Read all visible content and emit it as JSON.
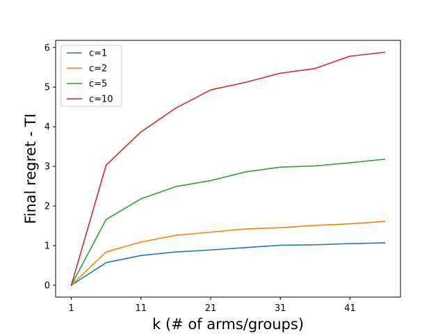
{
  "chart_data": {
    "type": "line",
    "title": "",
    "xlabel": "k (# of arms/groups)",
    "ylabel": "Final regret - TI",
    "x": [
      1,
      6,
      11,
      16,
      21,
      26,
      31,
      36,
      41,
      46
    ],
    "xticks": [
      1,
      11,
      21,
      31,
      41
    ],
    "yticks": [
      0,
      1,
      2,
      3,
      4,
      5,
      6
    ],
    "xlim": [
      -1.25,
      48.25
    ],
    "ylim": [
      -0.3,
      6.18
    ],
    "grid": false,
    "legend_position": "top-left",
    "series": [
      {
        "name": "c=1",
        "color": "#1f77b4",
        "values": [
          0.0,
          0.57,
          0.75,
          0.84,
          0.89,
          0.95,
          1.01,
          1.02,
          1.05,
          1.07
        ]
      },
      {
        "name": "c=2",
        "color": "#ff7f0e",
        "values": [
          0.0,
          0.84,
          1.09,
          1.26,
          1.34,
          1.42,
          1.45,
          1.51,
          1.55,
          1.61
        ]
      },
      {
        "name": "c=5",
        "color": "#2ca02c",
        "values": [
          0.0,
          1.66,
          2.18,
          2.49,
          2.64,
          2.86,
          2.98,
          3.01,
          3.09,
          3.18
        ]
      },
      {
        "name": "c=10",
        "color": "#d62728",
        "values": [
          0.0,
          3.03,
          3.87,
          4.47,
          4.93,
          5.12,
          5.35,
          5.47,
          5.78,
          5.88
        ]
      }
    ]
  }
}
